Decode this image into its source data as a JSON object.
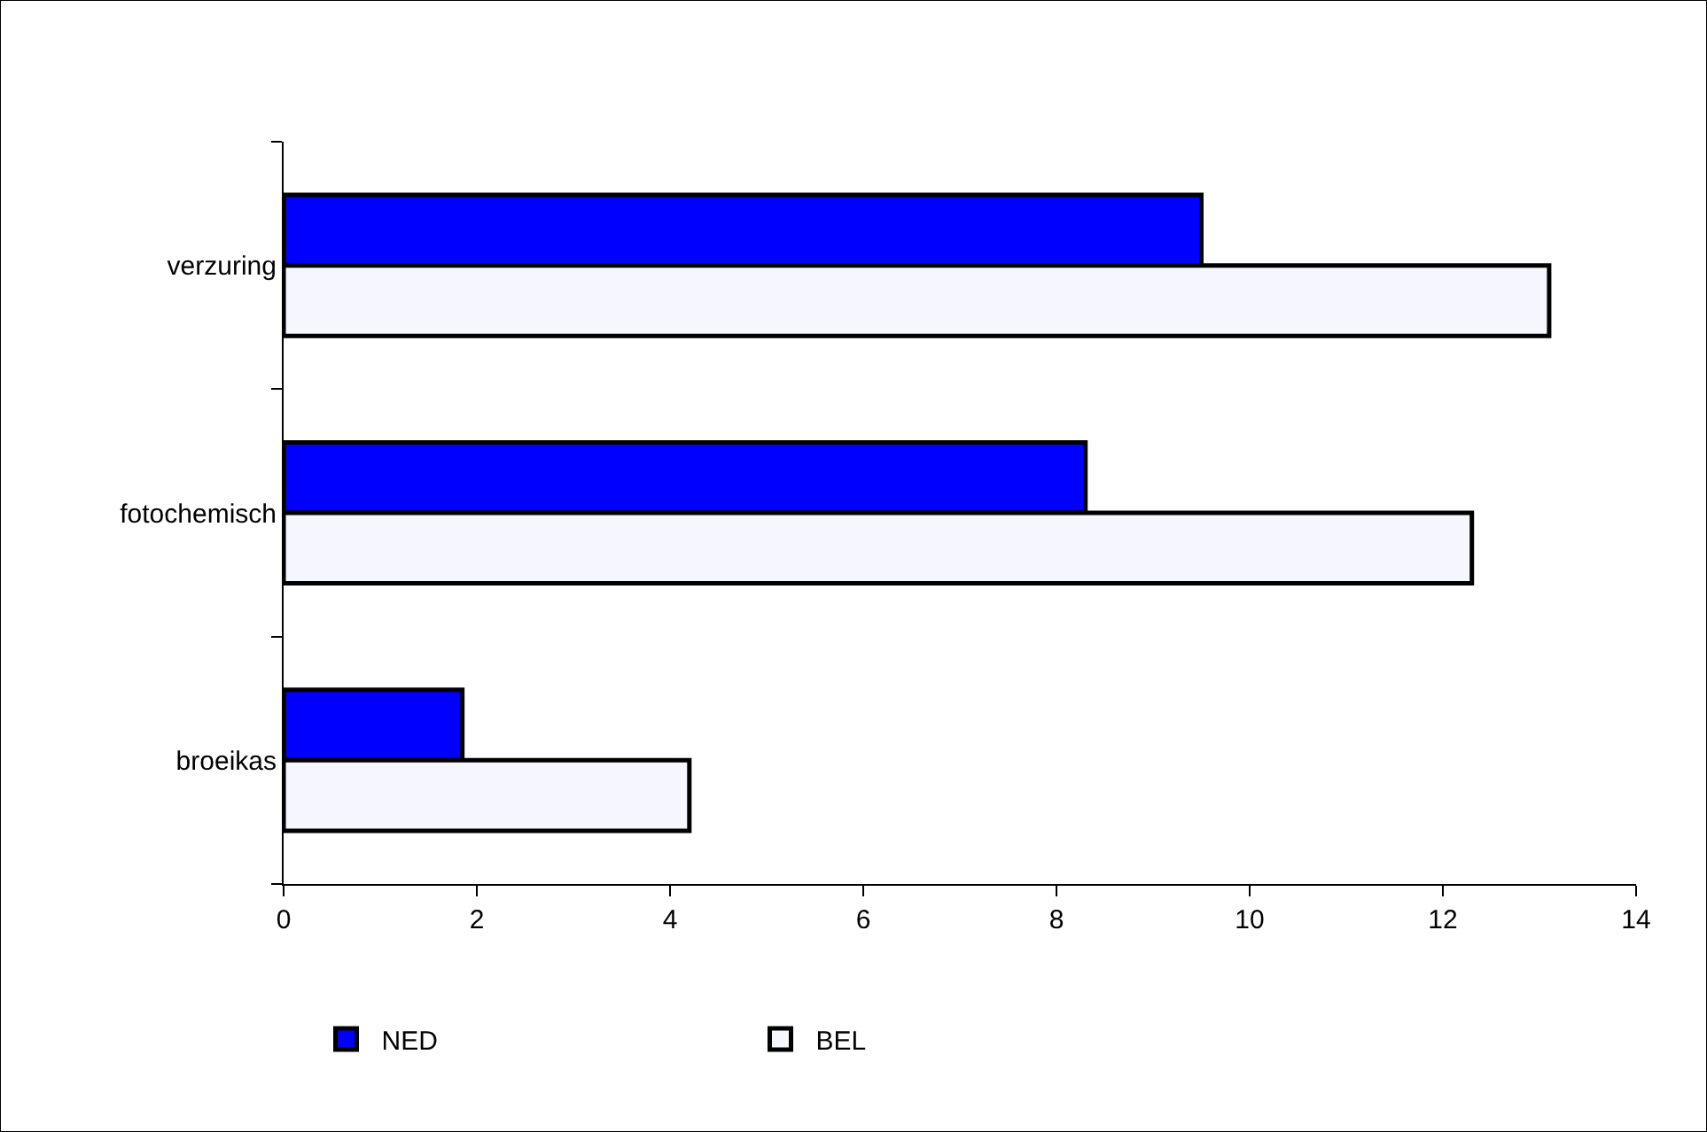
{
  "chart_data": {
    "type": "bar",
    "orientation": "horizontal",
    "categories": [
      "verzuring",
      "fotochemisch",
      "broeikas"
    ],
    "series": [
      {
        "name": "NED",
        "color": "#0000ff",
        "values": [
          9.5,
          8.3,
          1.85
        ]
      },
      {
        "name": "BEL",
        "color": "#f5f6fe",
        "values": [
          13.1,
          12.3,
          4.2
        ]
      }
    ],
    "xlim": [
      0,
      14
    ],
    "xticks": [
      0,
      2,
      4,
      6,
      8,
      10,
      12,
      14
    ],
    "legend": "bottom"
  }
}
